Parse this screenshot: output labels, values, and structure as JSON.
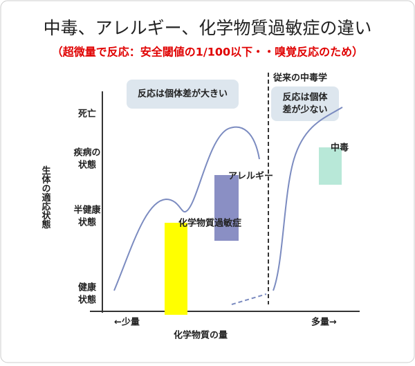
{
  "header": {
    "title": "中毒、アレルギー、化学物質過敏症の違い",
    "subtitle": "（超微量で反応：安全閾値の1/100以下・・嗅覚反応のため）"
  },
  "axes": {
    "y_label": "生体の適応状態",
    "x_label": "化学物質の量",
    "x_low": "←少量",
    "x_high": "多量→"
  },
  "levels": [
    [
      "死亡"
    ],
    [
      "疾病の",
      "状態"
    ],
    [
      "半健康",
      "状態"
    ],
    [
      "健康",
      "状態"
    ]
  ],
  "sections": {
    "traditional": "従来の中毒学"
  },
  "callouts": [
    [
      "反応は個体差が大きい"
    ],
    [
      "反応は個体",
      "差が少ない"
    ]
  ],
  "bars": [
    "化学物質過敏症",
    "アレルギー",
    "中毒"
  ]
}
